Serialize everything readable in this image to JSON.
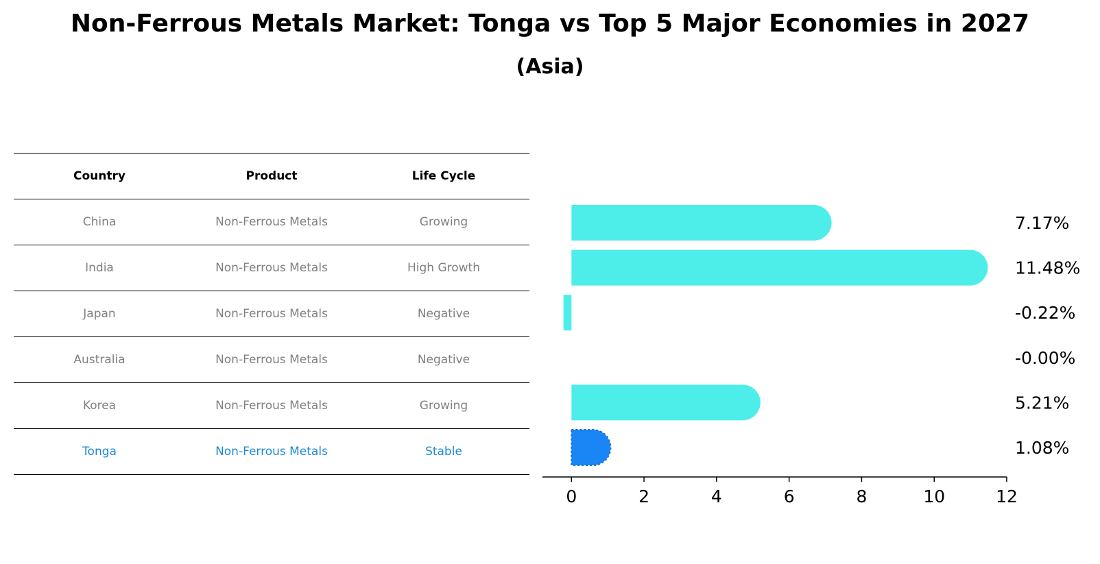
{
  "title": "Non-Ferrous Metals Market: Tonga vs Top 5 Major Economies in 2027",
  "subtitle": "(Asia)",
  "colors": {
    "bar": "#4deeea",
    "highlight": "#1a85f5",
    "highlight_text": "#1e88d6",
    "muted_text": "#808080"
  },
  "table": {
    "headers": [
      "Country",
      "Product",
      "Life Cycle"
    ],
    "rows": [
      [
        "China",
        "Non-Ferrous Metals",
        "Growing"
      ],
      [
        "India",
        "Non-Ferrous Metals",
        "High Growth"
      ],
      [
        "Japan",
        "Non-Ferrous Metals",
        "Negative"
      ],
      [
        "Australia",
        "Non-Ferrous Metals",
        "Negative"
      ],
      [
        "Korea",
        "Non-Ferrous Metals",
        "Growing"
      ],
      [
        "Tonga",
        "Non-Ferrous Metals",
        "Stable"
      ]
    ]
  },
  "chart_data": {
    "type": "bar",
    "orientation": "horizontal",
    "categories": [
      "China",
      "India",
      "Japan",
      "Australia",
      "Korea",
      "Tonga"
    ],
    "values": [
      7.17,
      11.48,
      -0.22,
      0.0,
      5.21,
      1.08
    ],
    "value_labels": [
      "7.17%",
      "11.48%",
      "-0.22%",
      "-0.00%",
      "5.21%",
      "1.08%"
    ],
    "highlight": "Tonga",
    "xlim": [
      -0.8,
      12
    ],
    "xticks": [
      0,
      2,
      4,
      6,
      8,
      10,
      12
    ],
    "xlabel": "",
    "ylabel": "",
    "grid": false
  }
}
